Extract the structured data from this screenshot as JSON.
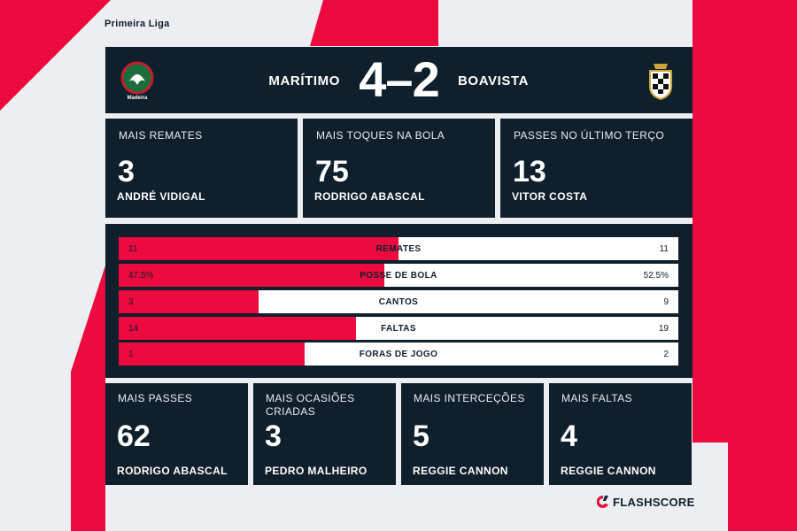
{
  "league": "Primeira Liga",
  "match": {
    "home": "Marítimo",
    "away": "Boavista",
    "score": "4–2",
    "home_crest_text": "Madeira"
  },
  "top_cards": [
    {
      "category": "Mais remates",
      "value": "3",
      "player": "André Vidigal"
    },
    {
      "category": "Mais toques na bola",
      "value": "75",
      "player": "Rodrigo Abascal"
    },
    {
      "category": "Passes no último terço",
      "value": "13",
      "player": "Vitor Costa"
    }
  ],
  "comparison": [
    {
      "label": "Remates",
      "home": "11",
      "away": "11",
      "home_share": 0.5
    },
    {
      "label": "Posse de bola",
      "home": "47.5%",
      "away": "52.5%",
      "home_share": 0.475
    },
    {
      "label": "Cantos",
      "home": "3",
      "away": "9",
      "home_share": 0.25
    },
    {
      "label": "Faltas",
      "home": "14",
      "away": "19",
      "home_share": 0.424
    },
    {
      "label": "Foras de jogo",
      "home": "1",
      "away": "2",
      "home_share": 0.333
    }
  ],
  "bottom_cards": [
    {
      "category": "Mais passes",
      "value": "62",
      "player": "Rodrigo Abascal"
    },
    {
      "category": "Mais ocasiões criadas",
      "value": "3",
      "player": "Pedro Malheiro"
    },
    {
      "category": "Mais interceções",
      "value": "5",
      "player": "Reggie Cannon"
    },
    {
      "category": "Mais faltas",
      "value": "4",
      "player": "Reggie Cannon"
    }
  ],
  "brand": "FLASHSCORE",
  "colors": {
    "accent": "#ec0a3f",
    "panel": "#0f1f2c",
    "background": "#eceef1"
  }
}
